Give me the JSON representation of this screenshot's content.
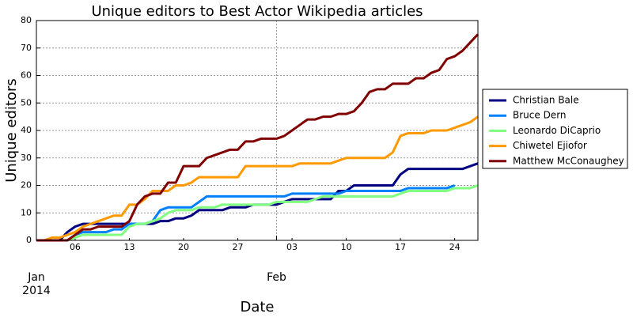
{
  "chart_data": {
    "type": "line",
    "title": "Unique editors to Best Actor Wikipedia articles",
    "xlabel": "Date",
    "ylabel": "Unique editors",
    "x": [
      "2014-01-01",
      "2014-01-02",
      "2014-01-03",
      "2014-01-04",
      "2014-01-05",
      "2014-01-06",
      "2014-01-07",
      "2014-01-08",
      "2014-01-09",
      "2014-01-10",
      "2014-01-11",
      "2014-01-12",
      "2014-01-13",
      "2014-01-14",
      "2014-01-15",
      "2014-01-16",
      "2014-01-17",
      "2014-01-18",
      "2014-01-19",
      "2014-01-20",
      "2014-01-21",
      "2014-01-22",
      "2014-01-23",
      "2014-01-24",
      "2014-01-25",
      "2014-01-26",
      "2014-01-27",
      "2014-01-28",
      "2014-01-29",
      "2014-01-30",
      "2014-01-31",
      "2014-02-01",
      "2014-02-02",
      "2014-02-03",
      "2014-02-04",
      "2014-02-05",
      "2014-02-06",
      "2014-02-07",
      "2014-02-08",
      "2014-02-09",
      "2014-02-10",
      "2014-02-11",
      "2014-02-12",
      "2014-02-13",
      "2014-02-14",
      "2014-02-15",
      "2014-02-16",
      "2014-02-17",
      "2014-02-18",
      "2014-02-19",
      "2014-02-20",
      "2014-02-21",
      "2014-02-22",
      "2014-02-23",
      "2014-02-24",
      "2014-02-25",
      "2014-02-26",
      "2014-02-27"
    ],
    "series": [
      {
        "name": "Christian Bale",
        "color": "#000080",
        "values": [
          0,
          0,
          0,
          0,
          3,
          5,
          6,
          6,
          6,
          6,
          6,
          6,
          6,
          6,
          6,
          6,
          7,
          7,
          8,
          8,
          9,
          11,
          11,
          11,
          11,
          12,
          12,
          12,
          13,
          13,
          13,
          13,
          14,
          15,
          15,
          15,
          15,
          15,
          15,
          18,
          18,
          20,
          20,
          20,
          20,
          20,
          20,
          24,
          26,
          26,
          26,
          26,
          26,
          26,
          26,
          26,
          27,
          28
        ]
      },
      {
        "name": "Bruce Dern",
        "color": "#0080ff",
        "values": [
          0,
          0,
          0,
          0,
          0,
          2,
          3,
          3,
          3,
          3,
          4,
          4,
          6,
          6,
          6,
          7,
          11,
          12,
          12,
          12,
          12,
          14,
          16,
          16,
          16,
          16,
          16,
          16,
          16,
          16,
          16,
          16,
          16,
          17,
          17,
          17,
          17,
          17,
          17,
          17,
          18,
          18,
          18,
          18,
          18,
          18,
          18,
          18,
          19,
          19,
          19,
          19,
          19,
          19,
          20,
          null,
          null,
          null
        ]
      },
      {
        "name": "Leonardo DiCaprio",
        "color": "#80ff80",
        "values": [
          0,
          0,
          0,
          0,
          0,
          1,
          2,
          2,
          2,
          2,
          2,
          2,
          5,
          6,
          6,
          7,
          8,
          10,
          11,
          11,
          11,
          12,
          12,
          12,
          13,
          13,
          13,
          13,
          13,
          13,
          13,
          14,
          14,
          14,
          14,
          14,
          15,
          16,
          16,
          16,
          16,
          16,
          16,
          16,
          16,
          16,
          16,
          17,
          18,
          18,
          18,
          18,
          18,
          18,
          19,
          19,
          19,
          20
        ]
      },
      {
        "name": "Chiwetel Ejiofor",
        "color": "#ff9900",
        "values": [
          0,
          0,
          1,
          1,
          2,
          3,
          5,
          6,
          7,
          8,
          9,
          9,
          13,
          13,
          15,
          18,
          18,
          18,
          20,
          20,
          21,
          23,
          23,
          23,
          23,
          23,
          23,
          27,
          27,
          27,
          27,
          27,
          27,
          27,
          28,
          28,
          28,
          28,
          28,
          29,
          30,
          30,
          30,
          30,
          30,
          30,
          32,
          38,
          39,
          39,
          39,
          40,
          40,
          40,
          41,
          42,
          43,
          45
        ]
      },
      {
        "name": "Matthew McConaughey",
        "color": "#800000",
        "values": [
          0,
          0,
          0,
          0,
          0,
          2,
          4,
          4,
          5,
          5,
          5,
          5,
          7,
          13,
          16,
          17,
          17,
          21,
          21,
          27,
          27,
          27,
          30,
          31,
          32,
          33,
          33,
          36,
          36,
          37,
          37,
          37,
          38,
          40,
          42,
          44,
          44,
          45,
          45,
          46,
          46,
          47,
          50,
          54,
          55,
          55,
          57,
          57,
          57,
          59,
          59,
          61,
          62,
          66,
          67,
          69,
          72,
          75
        ]
      }
    ],
    "xlim": [
      "2014-01-01",
      "2014-02-27"
    ],
    "xticks": [
      {
        "value": "2014-01-06",
        "label": "06"
      },
      {
        "value": "2014-01-13",
        "label": "13"
      },
      {
        "value": "2014-01-20",
        "label": "20"
      },
      {
        "value": "2014-01-27",
        "label": "27"
      },
      {
        "value": "2014-02-03",
        "label": "03"
      },
      {
        "value": "2014-02-10",
        "label": "10"
      },
      {
        "value": "2014-02-17",
        "label": "17"
      },
      {
        "value": "2014-02-24",
        "label": "24"
      }
    ],
    "xticks_major": [
      {
        "value": "2014-01-01",
        "label": "Jan",
        "year": "2014"
      },
      {
        "value": "2014-02-01",
        "label": "Feb"
      }
    ],
    "ylim": [
      0,
      80
    ],
    "yticks": [
      0,
      10,
      20,
      30,
      40,
      50,
      60,
      70,
      80
    ],
    "grid": true,
    "legend": "right"
  }
}
